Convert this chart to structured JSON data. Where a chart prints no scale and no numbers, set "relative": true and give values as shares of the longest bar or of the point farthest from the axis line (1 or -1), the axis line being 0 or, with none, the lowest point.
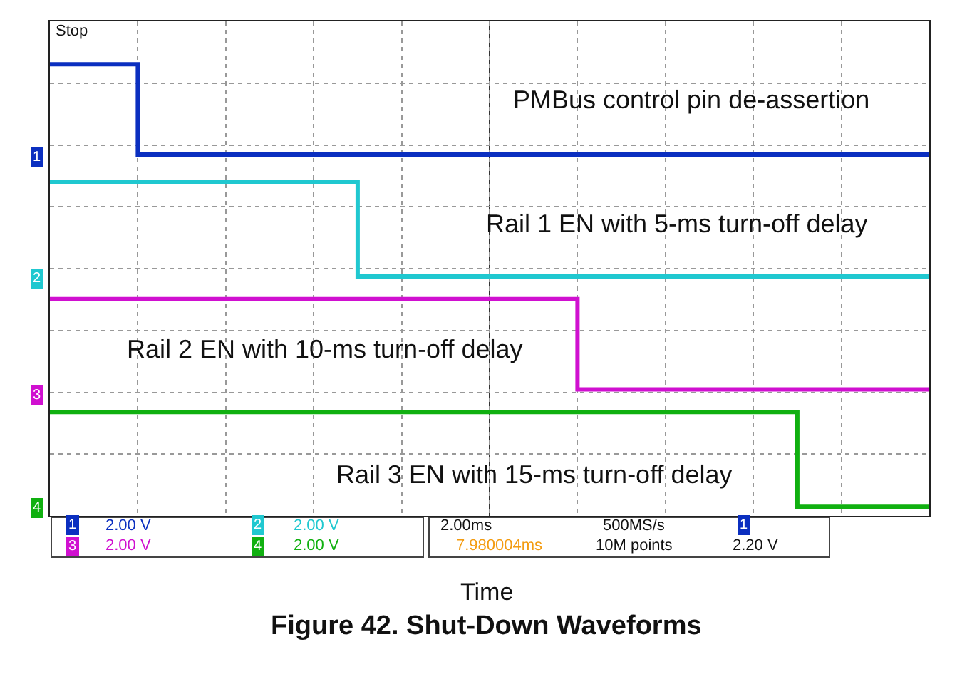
{
  "chart_data": {
    "type": "step",
    "relative": true,
    "title": "Figure 42. Shut-Down Waveforms",
    "xlabel": "Time",
    "categories": [
      null,
      null,
      null,
      null,
      null,
      null,
      null,
      null,
      null,
      null,
      null,
      null,
      null,
      null,
      null,
      null,
      null,
      null,
      null,
      null,
      null
    ],
    "series": [
      {
        "name": "PMBus control pin de-assertion",
        "color": "#0b2fc0",
        "values": [
          1.0,
          1.0,
          0.8,
          0.8,
          0.8,
          0.8,
          0.8,
          0.8,
          0.8,
          0.8,
          0.8,
          0.8,
          0.8,
          0.8,
          0.8,
          0.8,
          0.8,
          0.8,
          0.8,
          0.8,
          0.8
        ]
      },
      {
        "name": "Rail 1 EN with 5-ms turn-off delay",
        "color": "#20c8d0",
        "values": [
          0.74,
          0.74,
          0.74,
          0.74,
          0.74,
          0.74,
          0.74,
          0.53,
          0.53,
          0.53,
          0.53,
          0.53,
          0.53,
          0.53,
          0.53,
          0.53,
          0.53,
          0.53,
          0.53,
          0.53,
          0.53
        ]
      },
      {
        "name": "Rail 2 EN with 10-ms turn-off delay",
        "color": "#d010d0",
        "values": [
          0.48,
          0.48,
          0.48,
          0.48,
          0.48,
          0.48,
          0.48,
          0.48,
          0.48,
          0.48,
          0.48,
          0.48,
          0.28,
          0.28,
          0.28,
          0.28,
          0.28,
          0.28,
          0.28,
          0.28,
          0.28
        ]
      },
      {
        "name": "Rail 3 EN with 15-ms turn-off delay",
        "color": "#10b010",
        "values": [
          0.23,
          0.23,
          0.23,
          0.23,
          0.23,
          0.23,
          0.23,
          0.23,
          0.23,
          0.23,
          0.23,
          0.23,
          0.23,
          0.23,
          0.23,
          0.23,
          0.23,
          0.02,
          0.02,
          0.02,
          0.02
        ]
      }
    ],
    "annotations": [
      "Stop",
      "1",
      "2",
      "3",
      "4",
      "1",
      "2.00 V",
      "2",
      "2.00 V",
      "3",
      "2.00 V",
      "4",
      "2.00 V",
      "2.00ms",
      "500MS/s",
      "1",
      "2.20 V",
      "7.980004ms",
      "10M points"
    ],
    "grid": true,
    "legend": false,
    "marker": "none",
    "line_style": "solid"
  }
}
